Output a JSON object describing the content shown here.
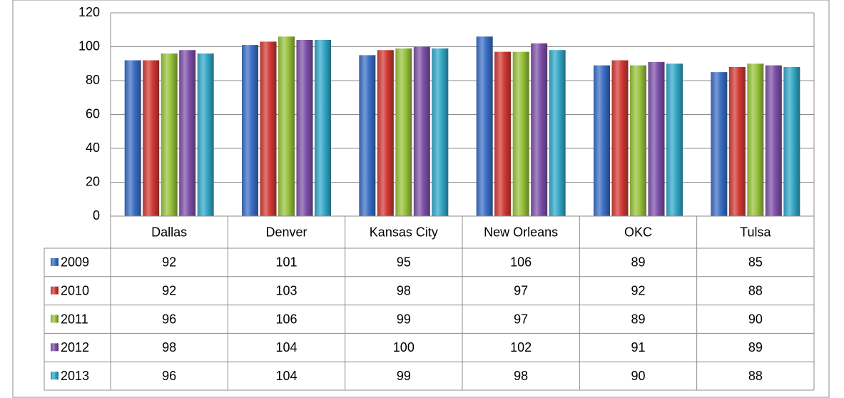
{
  "chart_data": {
    "type": "bar",
    "categories": [
      "Dallas",
      "Denver",
      "Kansas City",
      "New Orleans",
      "OKC",
      "Tulsa"
    ],
    "series": [
      {
        "name": "2009",
        "color": "#3b6fc6",
        "values": [
          92,
          101,
          95,
          106,
          89,
          85
        ]
      },
      {
        "name": "2010",
        "color": "#d23a34",
        "values": [
          92,
          103,
          98,
          97,
          92,
          88
        ]
      },
      {
        "name": "2011",
        "color": "#98c23c",
        "values": [
          96,
          106,
          99,
          97,
          89,
          90
        ]
      },
      {
        "name": "2012",
        "color": "#7e50a9",
        "values": [
          98,
          104,
          100,
          102,
          91,
          89
        ]
      },
      {
        "name": "2013",
        "color": "#33a8c7",
        "values": [
          96,
          104,
          99,
          98,
          90,
          88
        ]
      }
    ],
    "ylim": [
      0,
      120
    ],
    "yticks": [
      0,
      20,
      40,
      60,
      80,
      100,
      120
    ],
    "grid": true
  }
}
